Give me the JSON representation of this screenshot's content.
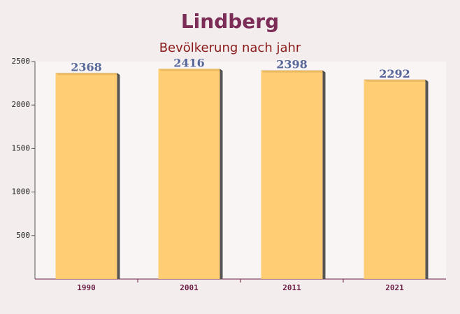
{
  "chart_data": {
    "type": "bar",
    "title": "Lindberg",
    "subtitle": "Bevölkerung nach jahr",
    "categories": [
      "1990",
      "2001",
      "2011",
      "2021"
    ],
    "values": [
      2368,
      2416,
      2398,
      2292
    ],
    "color": "#ffc965",
    "label_color": "#58689a",
    "ylim": [
      0,
      2500
    ],
    "yticks": [
      500,
      1000,
      1500,
      2000,
      2500
    ]
  }
}
